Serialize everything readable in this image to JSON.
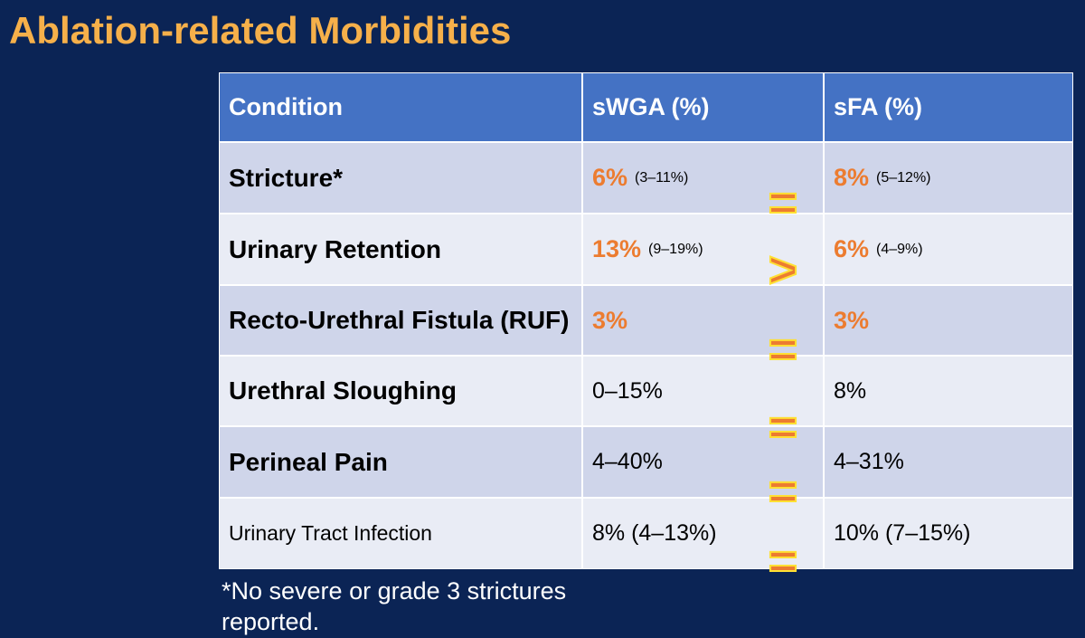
{
  "header": {
    "title": "Ablation-related Morbidities"
  },
  "table": {
    "columns": [
      "Condition",
      "sWGA (%)",
      "sFA (%)"
    ],
    "rows": [
      {
        "condition": "Stricture*",
        "swga": {
          "main": "6%",
          "ci": "(3–11%)"
        },
        "sfa": {
          "main": "8%",
          "ci": "(5–12%)"
        }
      },
      {
        "condition": "Urinary Retention",
        "swga": {
          "main": "13%",
          "ci": "(9–19%)"
        },
        "sfa": {
          "main": "6%",
          "ci": "(4–9%)"
        }
      },
      {
        "condition": "Recto-Urethral Fistula (RUF)",
        "swga": {
          "main": "3%"
        },
        "sfa": {
          "main": "3%"
        }
      },
      {
        "condition": "Urethral Sloughing",
        "swga": {
          "main": "0–15%"
        },
        "sfa": {
          "main": "8%"
        }
      },
      {
        "condition": "Perineal Pain",
        "swga": {
          "main": "4–40%"
        },
        "sfa": {
          "main": "4–31%"
        }
      },
      {
        "condition": "Urinary Tract Infection",
        "swga": {
          "main": "8% (4–13%)"
        },
        "sfa": {
          "main": "10% (7–15%)"
        }
      }
    ],
    "comparisons": [
      "=",
      ">",
      "=",
      "=",
      "=",
      "="
    ]
  },
  "footnote": "*No severe or grade 3 strictures reported."
}
